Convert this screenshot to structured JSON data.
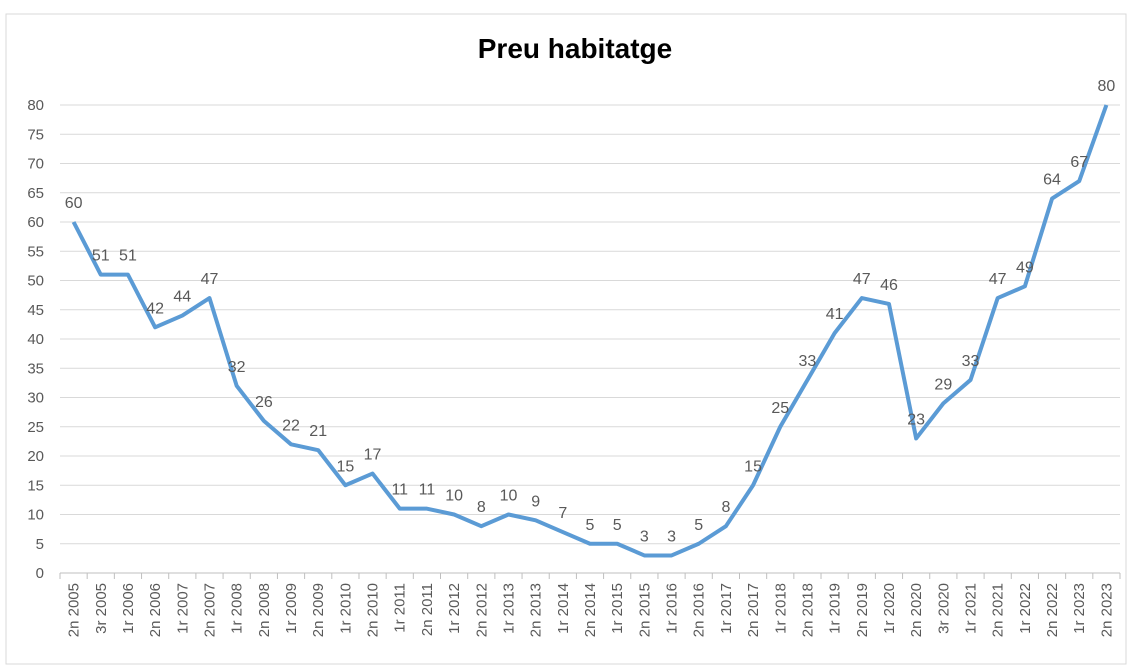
{
  "chart_data": {
    "type": "line",
    "title": "Preu habitatge",
    "categories": [
      "2n 2005",
      "3r 2005",
      "1r 2006",
      "2n 2006",
      "1r 2007",
      "2n 2007",
      "1r 2008",
      "2n 2008",
      "1r 2009",
      "2n 2009",
      "1r 2010",
      "2n 2010",
      "1r 2011",
      "2n 2011",
      "1r 2012",
      "2n 2012",
      "1r 2013",
      "2n 2013",
      "1r 2014",
      "2n 2014",
      "1r 2015",
      "2n 2015",
      "1r 2016",
      "2n 2016",
      "1r 2017",
      "2n 2017",
      "1r 2018",
      "2n 2018",
      "1r 2019",
      "2n 2019",
      "1r 2020",
      "2n 2020",
      "3r 2020",
      "1r 2021",
      "2n 2021",
      "1r 2022",
      "2n 2022",
      "1r 2023",
      "2n 2023"
    ],
    "values": [
      60,
      51,
      51,
      42,
      44,
      47,
      32,
      26,
      22,
      21,
      15,
      17,
      11,
      11,
      10,
      8,
      10,
      9,
      7,
      5,
      5,
      3,
      3,
      5,
      8,
      15,
      25,
      33,
      41,
      47,
      46,
      23,
      29,
      33,
      47,
      49,
      64,
      67,
      80
    ],
    "color": "#5b9bd5",
    "ylim": [
      0,
      80
    ],
    "yticks": [
      0,
      5,
      10,
      15,
      20,
      25,
      30,
      35,
      40,
      45,
      50,
      55,
      60,
      65,
      70,
      75,
      80
    ],
    "grid": true
  }
}
